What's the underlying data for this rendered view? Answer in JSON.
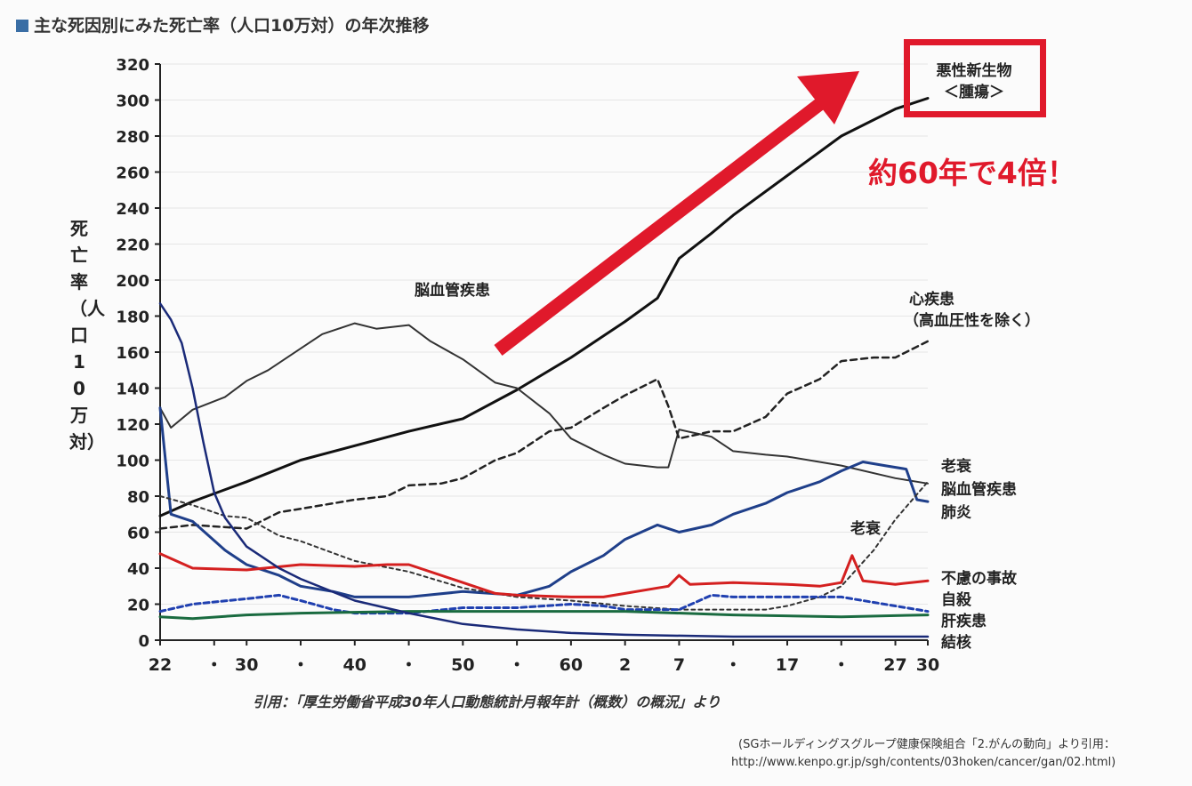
{
  "title": "主な死因別にみた死亡率（人口10万対）の年次推移",
  "ylabel": "死亡率（人口10万対）",
  "citation": "引用：「厚生労働省平成30年人口動態統計月報年計（概数）の概況」より",
  "source_line1": "(SGホールディングスグループ健康保険組合「2.がんの動向」より引用：",
  "source_line2": "http://www.kenpo.gr.jp/sgh/contents/03hoken/cancer/gan/02.html)",
  "highlight": {
    "label_line1": "悪性新生物",
    "label_line2": "＜腫瘍＞",
    "callout": "約60年で4倍！",
    "color": "#e0192b"
  },
  "inline_labels": {
    "stroke_mid": "脳血管疾患",
    "heart_line1": "心疾患",
    "heart_line2": "（高血圧性を除く）",
    "senility_mid": "老衰"
  },
  "end_labels": [
    "老衰",
    "脳血管疾患",
    "肺炎",
    "不慮の事故",
    "自殺",
    "肝疾患",
    "結核"
  ],
  "chart_data": {
    "type": "line",
    "x_ticks": [
      "22",
      "・",
      "30",
      "・",
      "40",
      "・",
      "50",
      "・",
      "60",
      "2",
      "7",
      "・",
      "17",
      "・",
      "27",
      "30"
    ],
    "x_tick_positions": [
      1947,
      1952,
      1955,
      1960,
      1965,
      1970,
      1975,
      1980,
      1985,
      1990,
      1995,
      2000,
      2005,
      2010,
      2015,
      2018
    ],
    "xlim": [
      1947,
      2018
    ],
    "ylim": [
      0,
      320
    ],
    "y_ticks": [
      0,
      20,
      40,
      60,
      80,
      100,
      120,
      140,
      160,
      180,
      200,
      220,
      240,
      260,
      280,
      300,
      320
    ],
    "series": [
      {
        "name": "悪性新生物＜腫瘍＞",
        "color": "#111111",
        "width": 3,
        "dash": "",
        "points": [
          [
            1947,
            69
          ],
          [
            1950,
            77
          ],
          [
            1955,
            88
          ],
          [
            1960,
            100
          ],
          [
            1965,
            108
          ],
          [
            1970,
            116
          ],
          [
            1975,
            123
          ],
          [
            1980,
            139
          ],
          [
            1985,
            157
          ],
          [
            1990,
            177
          ],
          [
            1993,
            190
          ],
          [
            1995,
            212
          ],
          [
            1998,
            226
          ],
          [
            2000,
            236
          ],
          [
            2005,
            258
          ],
          [
            2010,
            280
          ],
          [
            2015,
            295
          ],
          [
            2018,
            301
          ]
        ]
      },
      {
        "name": "脳血管疾患",
        "color": "#333333",
        "width": 2,
        "dash": "",
        "points": [
          [
            1947,
            129
          ],
          [
            1948,
            118
          ],
          [
            1950,
            128
          ],
          [
            1953,
            135
          ],
          [
            1955,
            144
          ],
          [
            1957,
            150
          ],
          [
            1960,
            162
          ],
          [
            1962,
            170
          ],
          [
            1965,
            176
          ],
          [
            1967,
            173
          ],
          [
            1970,
            175
          ],
          [
            1972,
            166
          ],
          [
            1975,
            156
          ],
          [
            1978,
            143
          ],
          [
            1980,
            140
          ],
          [
            1983,
            126
          ],
          [
            1985,
            112
          ],
          [
            1988,
            103
          ],
          [
            1990,
            98
          ],
          [
            1993,
            96
          ],
          [
            1994,
            96
          ],
          [
            1995,
            117
          ],
          [
            1998,
            113
          ],
          [
            2000,
            105
          ],
          [
            2003,
            103
          ],
          [
            2005,
            102
          ],
          [
            2010,
            97
          ],
          [
            2015,
            90
          ],
          [
            2018,
            87
          ]
        ]
      },
      {
        "name": "心疾患（高血圧性を除く）",
        "color": "#222222",
        "width": 2.5,
        "dash": "7 5",
        "points": [
          [
            1947,
            62
          ],
          [
            1950,
            64
          ],
          [
            1955,
            62
          ],
          [
            1958,
            71
          ],
          [
            1960,
            73
          ],
          [
            1963,
            76
          ],
          [
            1965,
            78
          ],
          [
            1968,
            80
          ],
          [
            1970,
            86
          ],
          [
            1973,
            87
          ],
          [
            1975,
            90
          ],
          [
            1978,
            100
          ],
          [
            1980,
            104
          ],
          [
            1983,
            116
          ],
          [
            1985,
            118
          ],
          [
            1988,
            129
          ],
          [
            1990,
            136
          ],
          [
            1993,
            145
          ],
          [
            1994,
            130
          ],
          [
            1995,
            112
          ],
          [
            1998,
            116
          ],
          [
            2000,
            116
          ],
          [
            2003,
            124
          ],
          [
            2005,
            137
          ],
          [
            2008,
            145
          ],
          [
            2010,
            155
          ],
          [
            2013,
            157
          ],
          [
            2015,
            157
          ],
          [
            2018,
            166
          ]
        ]
      },
      {
        "name": "肺炎",
        "color": "#1f3f8a",
        "width": 3,
        "dash": "",
        "points": [
          [
            1947,
            129
          ],
          [
            1948,
            70
          ],
          [
            1950,
            66
          ],
          [
            1953,
            50
          ],
          [
            1955,
            42
          ],
          [
            1958,
            36
          ],
          [
            1960,
            30
          ],
          [
            1963,
            27
          ],
          [
            1965,
            24
          ],
          [
            1970,
            24
          ],
          [
            1975,
            27
          ],
          [
            1980,
            25
          ],
          [
            1983,
            30
          ],
          [
            1985,
            38
          ],
          [
            1988,
            47
          ],
          [
            1990,
            56
          ],
          [
            1993,
            64
          ],
          [
            1995,
            60
          ],
          [
            1998,
            64
          ],
          [
            2000,
            70
          ],
          [
            2003,
            76
          ],
          [
            2005,
            82
          ],
          [
            2008,
            88
          ],
          [
            2010,
            94
          ],
          [
            2012,
            99
          ],
          [
            2014,
            97
          ],
          [
            2016,
            95
          ],
          [
            2017,
            78
          ],
          [
            2018,
            77
          ]
        ]
      },
      {
        "name": "老衰",
        "color": "#333333",
        "width": 2,
        "dash": "4 4",
        "points": [
          [
            1947,
            80
          ],
          [
            1950,
            75
          ],
          [
            1953,
            69
          ],
          [
            1955,
            68
          ],
          [
            1958,
            58
          ],
          [
            1960,
            55
          ],
          [
            1965,
            44
          ],
          [
            1970,
            38
          ],
          [
            1975,
            29
          ],
          [
            1980,
            24
          ],
          [
            1985,
            22
          ],
          [
            1990,
            19
          ],
          [
            1995,
            17
          ],
          [
            2000,
            17
          ],
          [
            2003,
            17
          ],
          [
            2005,
            19
          ],
          [
            2008,
            24
          ],
          [
            2010,
            30
          ],
          [
            2013,
            50
          ],
          [
            2015,
            67
          ],
          [
            2018,
            88
          ]
        ]
      },
      {
        "name": "不慮の事故",
        "color": "#d42020",
        "width": 3,
        "dash": "",
        "points": [
          [
            1947,
            48
          ],
          [
            1950,
            40
          ],
          [
            1955,
            39
          ],
          [
            1960,
            42
          ],
          [
            1965,
            41
          ],
          [
            1968,
            42
          ],
          [
            1970,
            42
          ],
          [
            1975,
            32
          ],
          [
            1978,
            26
          ],
          [
            1980,
            25
          ],
          [
            1985,
            24
          ],
          [
            1988,
            24
          ],
          [
            1990,
            26
          ],
          [
            1993,
            29
          ],
          [
            1994,
            30
          ],
          [
            1995,
            36
          ],
          [
            1996,
            31
          ],
          [
            2000,
            32
          ],
          [
            2005,
            31
          ],
          [
            2008,
            30
          ],
          [
            2010,
            32
          ],
          [
            2011,
            47
          ],
          [
            2012,
            33
          ],
          [
            2015,
            31
          ],
          [
            2018,
            33
          ]
        ]
      },
      {
        "name": "自殺",
        "color": "#2040b0",
        "width": 3,
        "dash": "6 4",
        "points": [
          [
            1947,
            16
          ],
          [
            1950,
            20
          ],
          [
            1955,
            23
          ],
          [
            1958,
            25
          ],
          [
            1960,
            22
          ],
          [
            1963,
            17
          ],
          [
            1965,
            15
          ],
          [
            1970,
            15
          ],
          [
            1975,
            18
          ],
          [
            1980,
            18
          ],
          [
            1985,
            20
          ],
          [
            1988,
            19
          ],
          [
            1990,
            17
          ],
          [
            1993,
            17
          ],
          [
            1995,
            17
          ],
          [
            1998,
            25
          ],
          [
            2000,
            24
          ],
          [
            2005,
            24
          ],
          [
            2010,
            24
          ],
          [
            2013,
            21
          ],
          [
            2015,
            19
          ],
          [
            2018,
            16
          ]
        ]
      },
      {
        "name": "肝疾患",
        "color": "#1a6b40",
        "width": 3,
        "dash": "",
        "points": [
          [
            1947,
            13
          ],
          [
            1950,
            12
          ],
          [
            1955,
            14
          ],
          [
            1960,
            15
          ],
          [
            1970,
            16
          ],
          [
            1980,
            16
          ],
          [
            1990,
            16
          ],
          [
            2000,
            14
          ],
          [
            2010,
            13
          ],
          [
            2018,
            14
          ]
        ]
      },
      {
        "name": "結核",
        "color": "#1a2a78",
        "width": 2.5,
        "dash": "",
        "points": [
          [
            1947,
            187
          ],
          [
            1948,
            178
          ],
          [
            1949,
            165
          ],
          [
            1950,
            140
          ],
          [
            1951,
            110
          ],
          [
            1952,
            82
          ],
          [
            1953,
            68
          ],
          [
            1955,
            52
          ],
          [
            1958,
            40
          ],
          [
            1960,
            34
          ],
          [
            1965,
            22
          ],
          [
            1970,
            15
          ],
          [
            1975,
            9
          ],
          [
            1980,
            6
          ],
          [
            1985,
            4
          ],
          [
            1990,
            3
          ],
          [
            2000,
            2
          ],
          [
            2010,
            2
          ],
          [
            2018,
            2
          ]
        ]
      }
    ]
  }
}
